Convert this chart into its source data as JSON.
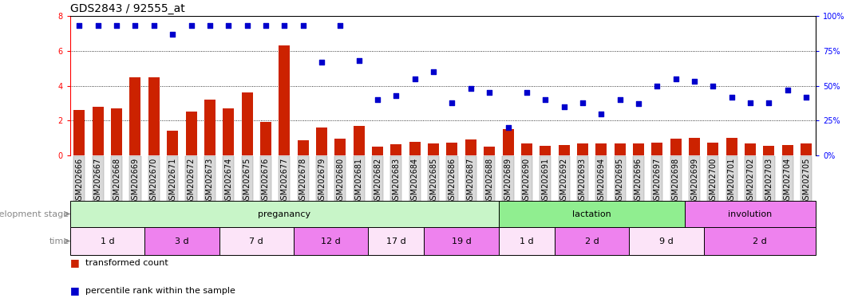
{
  "title": "GDS2843 / 92555_at",
  "samples": [
    "GSM202666",
    "GSM202667",
    "GSM202668",
    "GSM202669",
    "GSM202670",
    "GSM202671",
    "GSM202672",
    "GSM202673",
    "GSM202674",
    "GSM202675",
    "GSM202676",
    "GSM202677",
    "GSM202678",
    "GSM202679",
    "GSM202680",
    "GSM202681",
    "GSM202682",
    "GSM202683",
    "GSM202684",
    "GSM202685",
    "GSM202686",
    "GSM202687",
    "GSM202688",
    "GSM202689",
    "GSM202690",
    "GSM202691",
    "GSM202692",
    "GSM202693",
    "GSM202694",
    "GSM202695",
    "GSM202696",
    "GSM202697",
    "GSM202698",
    "GSM202699",
    "GSM202700",
    "GSM202701",
    "GSM202702",
    "GSM202703",
    "GSM202704",
    "GSM202705"
  ],
  "red_values": [
    2.6,
    2.8,
    2.7,
    4.5,
    4.5,
    1.4,
    2.5,
    3.2,
    2.7,
    3.6,
    1.9,
    6.3,
    0.85,
    1.6,
    0.95,
    1.7,
    0.5,
    0.65,
    0.8,
    0.7,
    0.75,
    0.9,
    0.5,
    1.5,
    0.7,
    0.55,
    0.6,
    0.7,
    0.7,
    0.7,
    0.7,
    0.75,
    0.95,
    1.0,
    0.75,
    1.0,
    0.7,
    0.55,
    0.6,
    0.7
  ],
  "blue_values": [
    93,
    93,
    93,
    93,
    93,
    87,
    93,
    93,
    93,
    93,
    93,
    93,
    93,
    67,
    93,
    68,
    40,
    43,
    55,
    60,
    38,
    48,
    45,
    20,
    45,
    40,
    35,
    38,
    30,
    40,
    37,
    50,
    55,
    53,
    50,
    42,
    38,
    38,
    47,
    42
  ],
  "stage_groups": [
    {
      "label": "preganancy",
      "start": 0,
      "end": 23,
      "color": "#c8f5c8"
    },
    {
      "label": "lactation",
      "start": 23,
      "end": 33,
      "color": "#90ee90"
    },
    {
      "label": "involution",
      "start": 33,
      "end": 40,
      "color": "#ee82ee"
    }
  ],
  "time_groups": [
    {
      "label": "1 d",
      "start": 0,
      "end": 4,
      "color": "#fce4f8"
    },
    {
      "label": "3 d",
      "start": 4,
      "end": 8,
      "color": "#ee82ee"
    },
    {
      "label": "7 d",
      "start": 8,
      "end": 12,
      "color": "#fce4f8"
    },
    {
      "label": "12 d",
      "start": 12,
      "end": 16,
      "color": "#ee82ee"
    },
    {
      "label": "17 d",
      "start": 16,
      "end": 19,
      "color": "#fce4f8"
    },
    {
      "label": "19 d",
      "start": 19,
      "end": 23,
      "color": "#ee82ee"
    },
    {
      "label": "1 d",
      "start": 23,
      "end": 26,
      "color": "#fce4f8"
    },
    {
      "label": "2 d",
      "start": 26,
      "end": 30,
      "color": "#ee82ee"
    },
    {
      "label": "9 d",
      "start": 30,
      "end": 34,
      "color": "#fce4f8"
    },
    {
      "label": "2 d",
      "start": 34,
      "end": 40,
      "color": "#ee82ee"
    }
  ],
  "ylim_left": [
    0,
    8
  ],
  "ylim_right": [
    0,
    100
  ],
  "yticks_left": [
    0,
    2,
    4,
    6,
    8
  ],
  "yticks_right": [
    0,
    25,
    50,
    75,
    100
  ],
  "bar_color": "#cc2200",
  "dot_color": "#0000cc",
  "background_color": "#ffffff",
  "title_fontsize": 10,
  "tick_fontsize": 7,
  "label_fontsize": 8,
  "legend_fontsize": 8,
  "stage_label_fontsize": 8,
  "time_label_fontsize": 8
}
